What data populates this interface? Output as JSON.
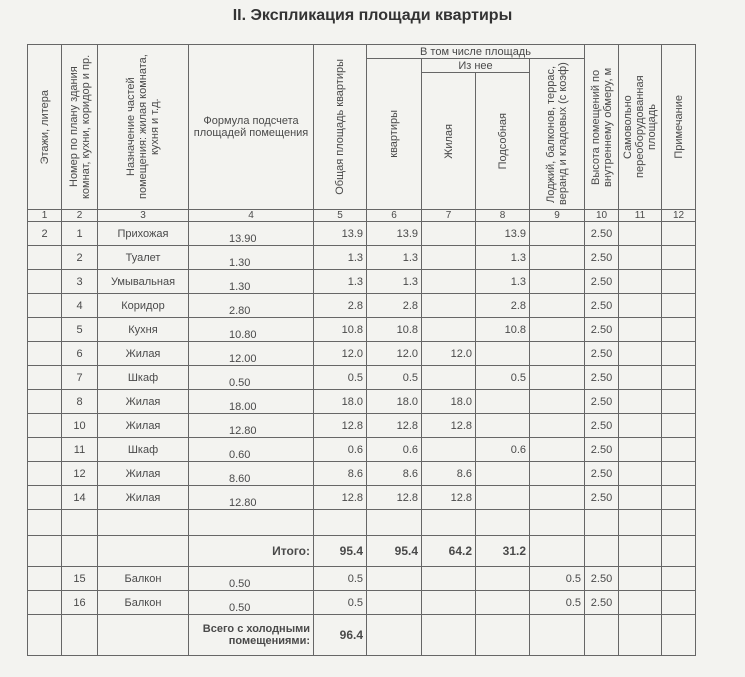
{
  "title": "II.  Экспликация площади квартиры",
  "headers": {
    "c1": "Этажи, литера",
    "c2": "Номер по плану здания комнат, кухни, коридор и пр.",
    "c3": "Назначение частей помещения: жилая комната, кухня и т.д.",
    "c4": "Формула подсчета площадей помещения",
    "c5": "Общая площадь квартиры",
    "group": "В том числе площадь",
    "c6": "квартиры",
    "subgroup": "Из нее",
    "c7": "Жилая",
    "c8": "Подсобная",
    "c9": "Лоджий, балконов, террас, веранд и кладовых (с коэф)",
    "c10": "Высота помещений по внутреннему обмеру, м",
    "c11": "Самовольно переоборудованная площадь",
    "c12": "Примечание"
  },
  "col_numbers": [
    "1",
    "2",
    "3",
    "4",
    "5",
    "6",
    "7",
    "8",
    "9",
    "10",
    "11",
    "12"
  ],
  "rows": [
    {
      "floor": "2",
      "no": "1",
      "name": "Прихожая",
      "formula": "13.90",
      "total": "13.9",
      "apt": "13.9",
      "living": "",
      "aux": "13.9",
      "balc": "",
      "height": "2.50"
    },
    {
      "floor": "",
      "no": "2",
      "name": "Туалет",
      "formula": "1.30",
      "total": "1.3",
      "apt": "1.3",
      "living": "",
      "aux": "1.3",
      "balc": "",
      "height": "2.50"
    },
    {
      "floor": "",
      "no": "3",
      "name": "Умывальная",
      "formula": "1.30",
      "total": "1.3",
      "apt": "1.3",
      "living": "",
      "aux": "1.3",
      "balc": "",
      "height": "2.50"
    },
    {
      "floor": "",
      "no": "4",
      "name": "Коридор",
      "formula": "2.80",
      "total": "2.8",
      "apt": "2.8",
      "living": "",
      "aux": "2.8",
      "balc": "",
      "height": "2.50"
    },
    {
      "floor": "",
      "no": "5",
      "name": "Кухня",
      "formula": "10.80",
      "total": "10.8",
      "apt": "10.8",
      "living": "",
      "aux": "10.8",
      "balc": "",
      "height": "2.50"
    },
    {
      "floor": "",
      "no": "6",
      "name": "Жилая",
      "formula": "12.00",
      "total": "12.0",
      "apt": "12.0",
      "living": "12.0",
      "aux": "",
      "balc": "",
      "height": "2.50"
    },
    {
      "floor": "",
      "no": "7",
      "name": "Шкаф",
      "formula": "0.50",
      "total": "0.5",
      "apt": "0.5",
      "living": "",
      "aux": "0.5",
      "balc": "",
      "height": "2.50"
    },
    {
      "floor": "",
      "no": "8",
      "name": "Жилая",
      "formula": "18.00",
      "total": "18.0",
      "apt": "18.0",
      "living": "18.0",
      "aux": "",
      "balc": "",
      "height": "2.50"
    },
    {
      "floor": "",
      "no": "10",
      "name": "Жилая",
      "formula": "12.80",
      "total": "12.8",
      "apt": "12.8",
      "living": "12.8",
      "aux": "",
      "balc": "",
      "height": "2.50"
    },
    {
      "floor": "",
      "no": "11",
      "name": "Шкаф",
      "formula": "0.60",
      "total": "0.6",
      "apt": "0.6",
      "living": "",
      "aux": "0.6",
      "balc": "",
      "height": "2.50"
    },
    {
      "floor": "",
      "no": "12",
      "name": "Жилая",
      "formula": "8.60",
      "total": "8.6",
      "apt": "8.6",
      "living": "8.6",
      "aux": "",
      "balc": "",
      "height": "2.50"
    },
    {
      "floor": "",
      "no": "14",
      "name": "Жилая",
      "formula": "12.80",
      "total": "12.8",
      "apt": "12.8",
      "living": "12.8",
      "aux": "",
      "balc": "",
      "height": "2.50"
    }
  ],
  "subtotal": {
    "label": "Итого:",
    "total": "95.4",
    "apt": "95.4",
    "living": "64.2",
    "aux": "31.2"
  },
  "cold_rows": [
    {
      "no": "15",
      "name": "Балкон",
      "formula": "0.50",
      "total": "0.5",
      "balc": "0.5",
      "height": "2.50"
    },
    {
      "no": "16",
      "name": "Балкон",
      "formula": "0.50",
      "total": "0.5",
      "balc": "0.5",
      "height": "2.50"
    }
  ],
  "grand_total": {
    "label": "Всего с холодными помещениями:",
    "total": "96.4"
  }
}
